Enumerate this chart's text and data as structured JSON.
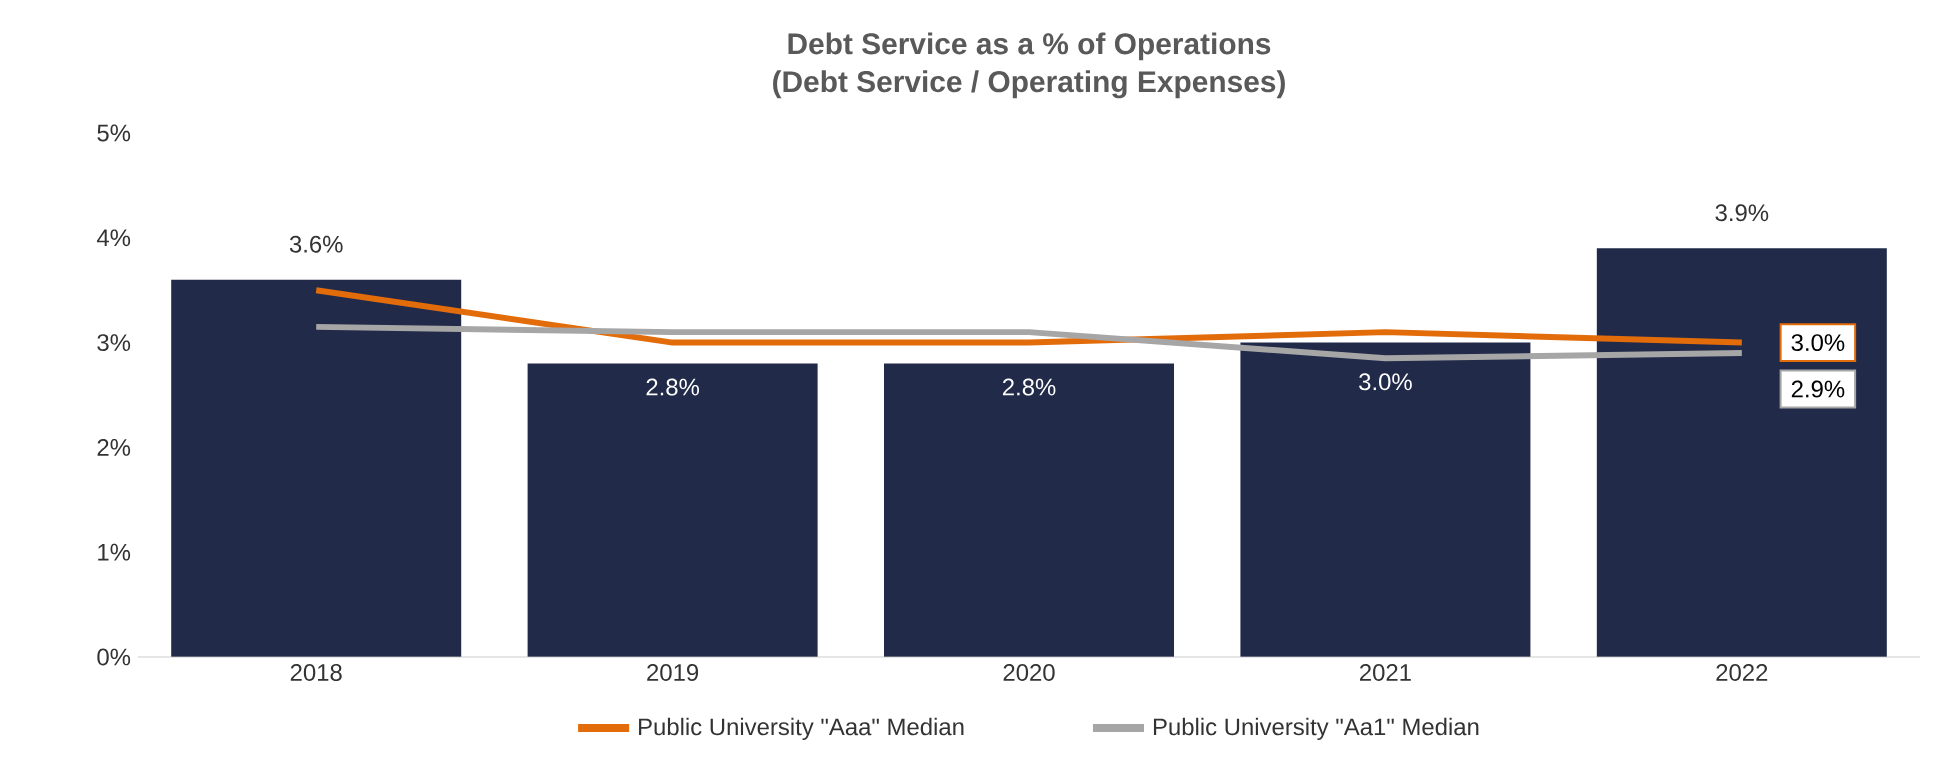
{
  "chart_data": {
    "type": "bar",
    "title": "Debt Service as a % of Operations\n(Debt Service / Operating Expenses)",
    "categories": [
      "2018",
      "2019",
      "2020",
      "2021",
      "2022"
    ],
    "series": [
      {
        "color": "#222a49",
        "values": [
          3.6,
          2.8,
          2.8,
          3.0,
          3.9
        ],
        "value_labels": [
          "3.6%",
          "2.8%",
          "2.8%",
          "3.0%",
          "3.9%"
        ]
      },
      {
        "type": "line",
        "name": "Public University \"Aaa\" Median",
        "color": "#e36c0a",
        "values": [
          3.5,
          3.0,
          3.0,
          3.1,
          3.0
        ]
      },
      {
        "type": "line",
        "name": "Public University \"Aa1\" Median",
        "color": "#a6a6a6",
        "values": [
          3.15,
          3.1,
          3.1,
          2.85,
          2.9
        ]
      }
    ],
    "annotations": [
      {
        "text": "3.0%",
        "x": "2022",
        "y": 3.0
      },
      {
        "text": "2.9%",
        "x": "2022",
        "y": 2.9
      }
    ],
    "ylim": [
      0,
      5
    ],
    "yticks": [
      {
        "value": 0,
        "label": "0%"
      },
      {
        "value": 1,
        "label": "1%"
      },
      {
        "value": 2,
        "label": "2%"
      },
      {
        "value": 3,
        "label": "3%"
      },
      {
        "value": 4,
        "label": "4%"
      },
      {
        "value": 5,
        "label": "5%"
      }
    ],
    "grid": false,
    "legend": "bottom",
    "marker": "none",
    "line_style": "solid"
  }
}
